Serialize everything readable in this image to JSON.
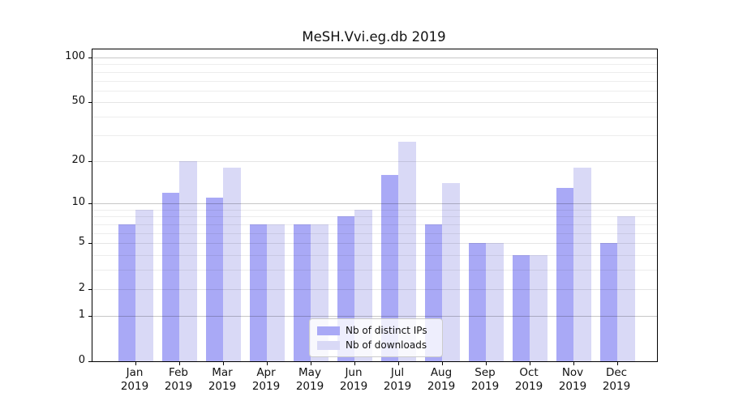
{
  "title": "MeSH.Vvi.eg.db 2019",
  "chart_data": {
    "type": "bar",
    "title": "MeSH.Vvi.eg.db 2019",
    "scale": "log1p",
    "grid": true,
    "legend_position": "lower-center",
    "categories": [
      "Jan",
      "Feb",
      "Mar",
      "Apr",
      "May",
      "Jun",
      "Jul",
      "Aug",
      "Sep",
      "Oct",
      "Nov",
      "Dec"
    ],
    "category_year": "2019",
    "series": [
      {
        "name": "Nb of distinct IPs",
        "color": "#a9a9f6",
        "values": [
          7,
          12,
          11,
          7,
          7,
          8,
          16,
          7,
          5,
          4,
          13,
          5
        ]
      },
      {
        "name": "Nb of downloads",
        "color": "#d9d9f6",
        "values": [
          9,
          20,
          18,
          7,
          7,
          9,
          27,
          14,
          5,
          4,
          18,
          8
        ]
      }
    ],
    "ylabel": "",
    "xlabel": "",
    "ylim": [
      0,
      113
    ],
    "yticks": [
      0,
      1,
      2,
      5,
      10,
      20,
      50,
      100
    ],
    "minor_gridlines": [
      3,
      4,
      6,
      7,
      8,
      9,
      30,
      40,
      60,
      70,
      80,
      90
    ],
    "mid_gridlines": [
      2,
      5,
      20,
      50
    ],
    "emphasized_gridlines": [
      1,
      10,
      100
    ],
    "colors": {
      "grid_minor": "rgba(0,0,0,0.07)",
      "grid_mid": "rgba(0,0,0,0.10)",
      "grid_major": "rgba(0,0,0,0.22)",
      "spine": "#000000",
      "legend_border": "#cccccc"
    }
  }
}
